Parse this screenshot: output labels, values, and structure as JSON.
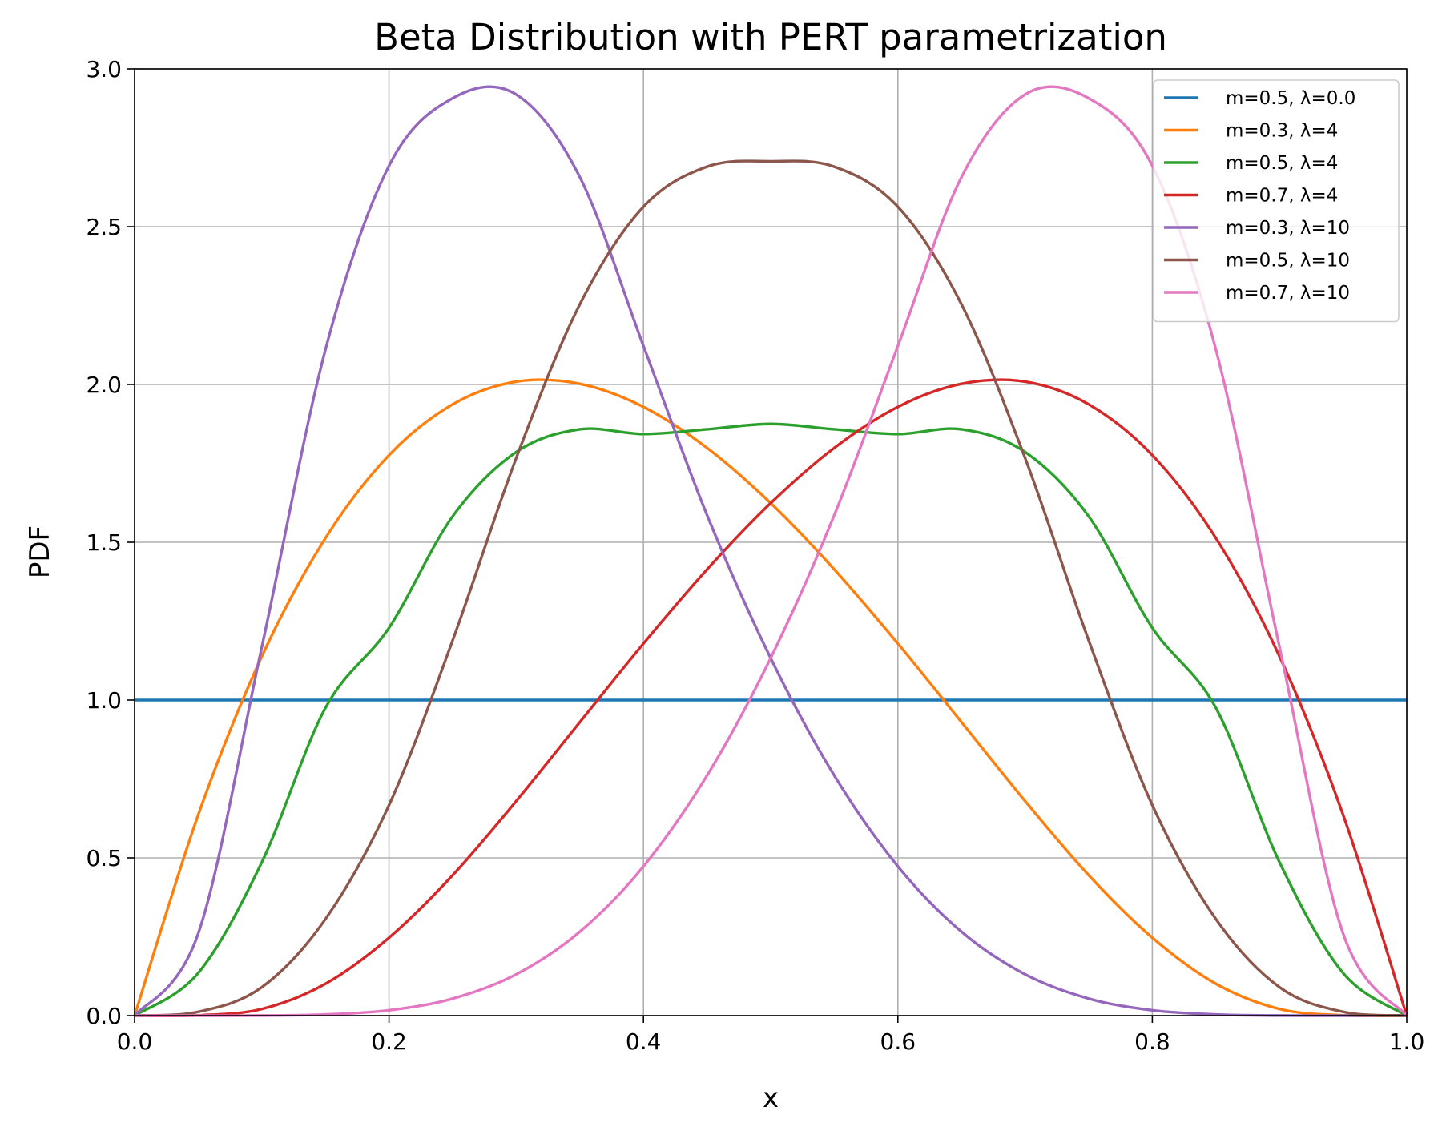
{
  "chart_data": {
    "type": "line",
    "title": "Beta Distribution with PERT parametrization",
    "xlabel": "x",
    "ylabel": "PDF",
    "xlim": [
      0.0,
      1.0
    ],
    "ylim": [
      0.0,
      3.0
    ],
    "xticks": [
      "0.0",
      "0.2",
      "0.4",
      "0.6",
      "0.8",
      "1.0"
    ],
    "yticks": [
      "0.0",
      "0.5",
      "1.0",
      "1.5",
      "2.0",
      "2.5",
      "3.0"
    ],
    "grid": true,
    "legend_position": "top-right",
    "x": [
      0.0,
      0.05,
      0.1,
      0.15,
      0.2,
      0.25,
      0.3,
      0.35,
      0.4,
      0.45,
      0.5,
      0.55,
      0.6,
      0.65,
      0.7,
      0.75,
      0.8,
      0.85,
      0.9,
      0.95,
      1.0
    ],
    "series": [
      {
        "name": "m=0.5, λ=0.0",
        "color": "#1f77b4",
        "values": [
          1.0,
          1.0,
          1.0,
          1.0,
          1.0,
          1.0,
          1.0,
          1.0,
          1.0,
          1.0,
          1.0,
          1.0,
          1.0,
          1.0,
          1.0,
          1.0,
          1.0,
          1.0,
          1.0,
          1.0,
          1.0
        ]
      },
      {
        "name": "m=0.3, λ=4",
        "color": "#ff7f0e",
        "values": [
          0.0,
          0.636,
          1.138,
          1.513,
          1.776,
          1.937,
          2.009,
          2.002,
          1.929,
          1.799,
          1.624,
          1.414,
          1.179,
          0.93,
          0.68,
          0.445,
          0.247,
          0.101,
          0.021,
          0.0009,
          0.0
        ]
      },
      {
        "name": "m=0.5, λ=4",
        "color": "#2ca02c",
        "values": [
          0.0,
          0.135,
          0.486,
          0.975,
          1.229,
          1.582,
          1.786,
          1.858,
          1.843,
          1.858,
          1.875,
          1.858,
          1.843,
          1.858,
          1.786,
          1.582,
          1.229,
          0.975,
          0.486,
          0.135,
          0.0
        ]
      },
      {
        "name": "m=0.7, λ=4",
        "color": "#d62728",
        "values": [
          0.0,
          0.0009,
          0.021,
          0.101,
          0.247,
          0.445,
          0.68,
          0.93,
          1.179,
          1.414,
          1.624,
          1.799,
          1.929,
          2.002,
          2.009,
          1.937,
          1.776,
          1.513,
          1.138,
          0.636,
          0.0
        ]
      },
      {
        "name": "m=0.3, λ=10",
        "color": "#9467bd",
        "values": [
          0.0,
          0.26,
          1.168,
          2.11,
          2.693,
          2.907,
          2.919,
          2.657,
          2.122,
          1.586,
          1.133,
          0.761,
          0.473,
          0.266,
          0.131,
          0.054,
          0.017,
          0.0035,
          0.0003,
          0.0,
          0.0
        ]
      },
      {
        "name": "m=0.5, λ=10",
        "color": "#8c564b",
        "values": [
          0.0,
          0.012,
          0.09,
          0.306,
          0.667,
          1.189,
          1.767,
          2.254,
          2.563,
          2.69,
          2.707,
          2.69,
          2.563,
          2.254,
          1.767,
          1.189,
          0.667,
          0.306,
          0.09,
          0.012,
          0.0
        ]
      },
      {
        "name": "m=0.7, λ=10",
        "color": "#e377c2",
        "values": [
          0.0,
          0.0,
          0.0003,
          0.0035,
          0.017,
          0.054,
          0.131,
          0.266,
          0.473,
          0.761,
          1.133,
          1.586,
          2.122,
          2.657,
          2.919,
          2.907,
          2.693,
          2.11,
          1.168,
          0.26,
          0.0
        ]
      }
    ]
  }
}
